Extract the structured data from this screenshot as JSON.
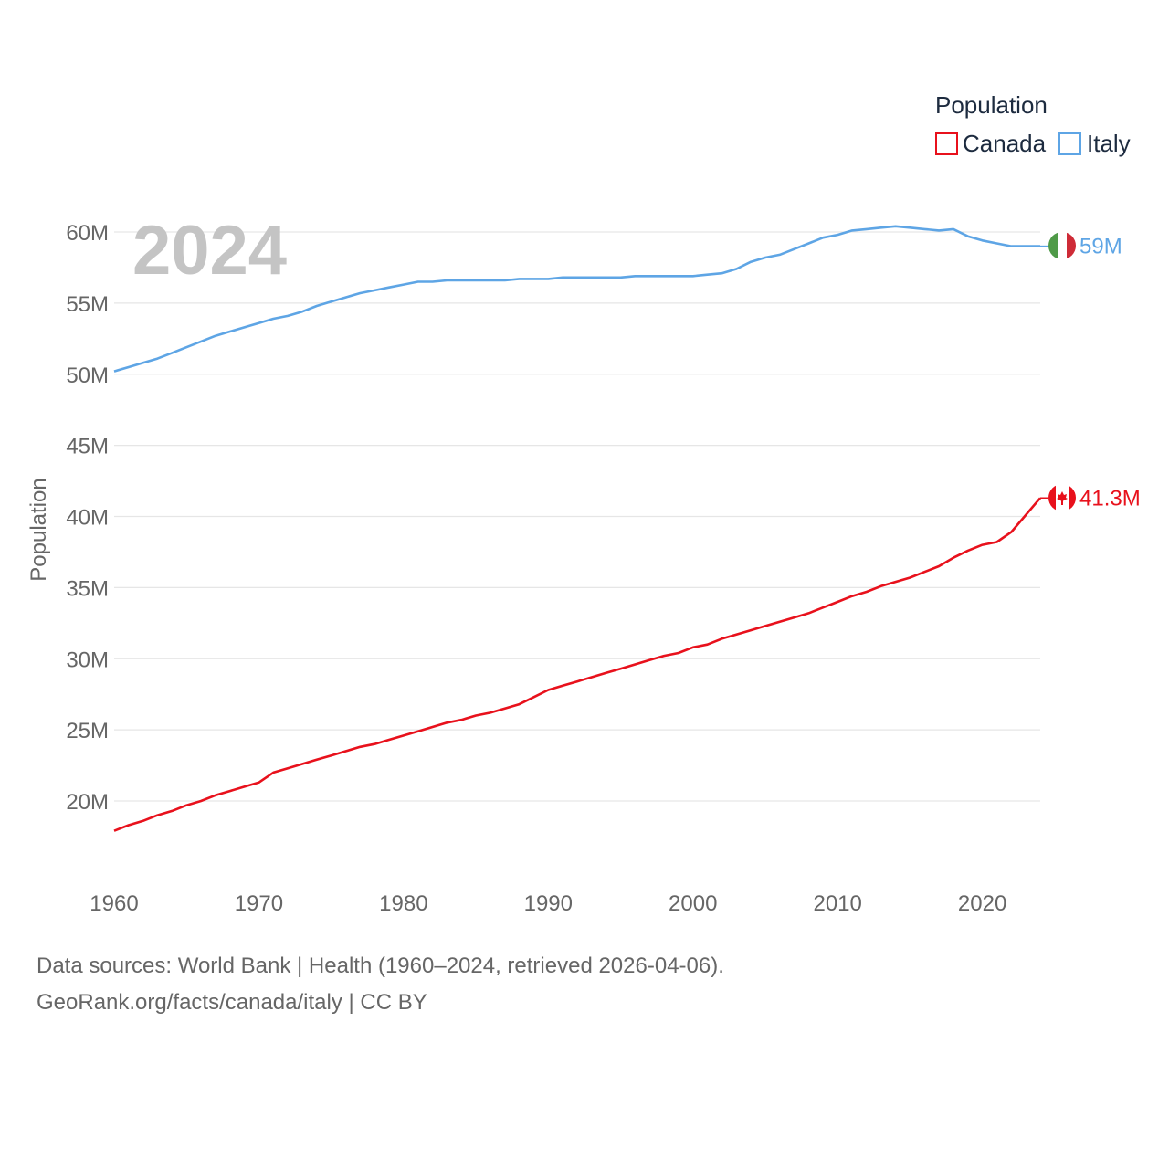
{
  "chart_data": {
    "type": "line",
    "ylabel": "Population",
    "xlabel": "",
    "year_display": "2024",
    "legend_title": "Population",
    "ylim": [
      15,
      62
    ],
    "xlim": [
      1960,
      2024
    ],
    "y_ticks": [
      {
        "value": 20,
        "label": "20M"
      },
      {
        "value": 25,
        "label": "25M"
      },
      {
        "value": 30,
        "label": "30M"
      },
      {
        "value": 35,
        "label": "35M"
      },
      {
        "value": 40,
        "label": "40M"
      },
      {
        "value": 45,
        "label": "45M"
      },
      {
        "value": 50,
        "label": "50M"
      },
      {
        "value": 55,
        "label": "55M"
      },
      {
        "value": 60,
        "label": "60M"
      }
    ],
    "x_ticks": [
      {
        "value": 1960,
        "label": "1960"
      },
      {
        "value": 1970,
        "label": "1970"
      },
      {
        "value": 1980,
        "label": "1980"
      },
      {
        "value": 1990,
        "label": "1990"
      },
      {
        "value": 2000,
        "label": "2000"
      },
      {
        "value": 2010,
        "label": "2010"
      },
      {
        "value": 2020,
        "label": "2020"
      }
    ],
    "series": [
      {
        "name": "Canada",
        "color": "#e8111c",
        "end_label": "41.3M",
        "flag": "canada-flag",
        "values": [
          [
            1960,
            17.9
          ],
          [
            1961,
            18.3
          ],
          [
            1962,
            18.6
          ],
          [
            1963,
            19.0
          ],
          [
            1964,
            19.3
          ],
          [
            1965,
            19.7
          ],
          [
            1966,
            20.0
          ],
          [
            1967,
            20.4
          ],
          [
            1968,
            20.7
          ],
          [
            1969,
            21.0
          ],
          [
            1970,
            21.3
          ],
          [
            1971,
            22.0
          ],
          [
            1972,
            22.3
          ],
          [
            1973,
            22.6
          ],
          [
            1974,
            22.9
          ],
          [
            1975,
            23.2
          ],
          [
            1976,
            23.5
          ],
          [
            1977,
            23.8
          ],
          [
            1978,
            24.0
          ],
          [
            1979,
            24.3
          ],
          [
            1980,
            24.6
          ],
          [
            1981,
            24.9
          ],
          [
            1982,
            25.2
          ],
          [
            1983,
            25.5
          ],
          [
            1984,
            25.7
          ],
          [
            1985,
            26.0
          ],
          [
            1986,
            26.2
          ],
          [
            1987,
            26.5
          ],
          [
            1988,
            26.8
          ],
          [
            1989,
            27.3
          ],
          [
            1990,
            27.8
          ],
          [
            1991,
            28.1
          ],
          [
            1992,
            28.4
          ],
          [
            1993,
            28.7
          ],
          [
            1994,
            29.0
          ],
          [
            1995,
            29.3
          ],
          [
            1996,
            29.6
          ],
          [
            1997,
            29.9
          ],
          [
            1998,
            30.2
          ],
          [
            1999,
            30.4
          ],
          [
            2000,
            30.8
          ],
          [
            2001,
            31.0
          ],
          [
            2002,
            31.4
          ],
          [
            2003,
            31.7
          ],
          [
            2004,
            32.0
          ],
          [
            2005,
            32.3
          ],
          [
            2006,
            32.6
          ],
          [
            2007,
            32.9
          ],
          [
            2008,
            33.2
          ],
          [
            2009,
            33.6
          ],
          [
            2010,
            34.0
          ],
          [
            2011,
            34.4
          ],
          [
            2012,
            34.7
          ],
          [
            2013,
            35.1
          ],
          [
            2014,
            35.4
          ],
          [
            2015,
            35.7
          ],
          [
            2016,
            36.1
          ],
          [
            2017,
            36.5
          ],
          [
            2018,
            37.1
          ],
          [
            2019,
            37.6
          ],
          [
            2020,
            38.0
          ],
          [
            2021,
            38.2
          ],
          [
            2022,
            38.9
          ],
          [
            2023,
            40.1
          ],
          [
            2024,
            41.3
          ]
        ]
      },
      {
        "name": "Italy",
        "color": "#5ea5e5",
        "end_label": "59M",
        "flag": "italy-flag",
        "values": [
          [
            1960,
            50.2
          ],
          [
            1961,
            50.5
          ],
          [
            1962,
            50.8
          ],
          [
            1963,
            51.1
          ],
          [
            1964,
            51.5
          ],
          [
            1965,
            51.9
          ],
          [
            1966,
            52.3
          ],
          [
            1967,
            52.7
          ],
          [
            1968,
            53.0
          ],
          [
            1969,
            53.3
          ],
          [
            1970,
            53.6
          ],
          [
            1971,
            53.9
          ],
          [
            1972,
            54.1
          ],
          [
            1973,
            54.4
          ],
          [
            1974,
            54.8
          ],
          [
            1975,
            55.1
          ],
          [
            1976,
            55.4
          ],
          [
            1977,
            55.7
          ],
          [
            1978,
            55.9
          ],
          [
            1979,
            56.1
          ],
          [
            1980,
            56.3
          ],
          [
            1981,
            56.5
          ],
          [
            1982,
            56.5
          ],
          [
            1983,
            56.6
          ],
          [
            1984,
            56.6
          ],
          [
            1985,
            56.6
          ],
          [
            1986,
            56.6
          ],
          [
            1987,
            56.6
          ],
          [
            1988,
            56.7
          ],
          [
            1989,
            56.7
          ],
          [
            1990,
            56.7
          ],
          [
            1991,
            56.8
          ],
          [
            1992,
            56.8
          ],
          [
            1993,
            56.8
          ],
          [
            1994,
            56.8
          ],
          [
            1995,
            56.8
          ],
          [
            1996,
            56.9
          ],
          [
            1997,
            56.9
          ],
          [
            1998,
            56.9
          ],
          [
            1999,
            56.9
          ],
          [
            2000,
            56.9
          ],
          [
            2001,
            57.0
          ],
          [
            2002,
            57.1
          ],
          [
            2003,
            57.4
          ],
          [
            2004,
            57.9
          ],
          [
            2005,
            58.2
          ],
          [
            2006,
            58.4
          ],
          [
            2007,
            58.8
          ],
          [
            2008,
            59.2
          ],
          [
            2009,
            59.6
          ],
          [
            2010,
            59.8
          ],
          [
            2011,
            60.1
          ],
          [
            2012,
            60.2
          ],
          [
            2013,
            60.3
          ],
          [
            2014,
            60.4
          ],
          [
            2015,
            60.3
          ],
          [
            2016,
            60.2
          ],
          [
            2017,
            60.1
          ],
          [
            2018,
            60.2
          ],
          [
            2019,
            59.7
          ],
          [
            2020,
            59.4
          ],
          [
            2021,
            59.2
          ],
          [
            2022,
            59.0
          ],
          [
            2023,
            59.0
          ],
          [
            2024,
            59.0
          ]
        ]
      }
    ]
  },
  "footer": {
    "sources": "Data sources: World Bank | Health (1960–2024, retrieved 2026-04-06).",
    "credit": "GeoRank.org/facts/canada/italy | CC BY"
  }
}
